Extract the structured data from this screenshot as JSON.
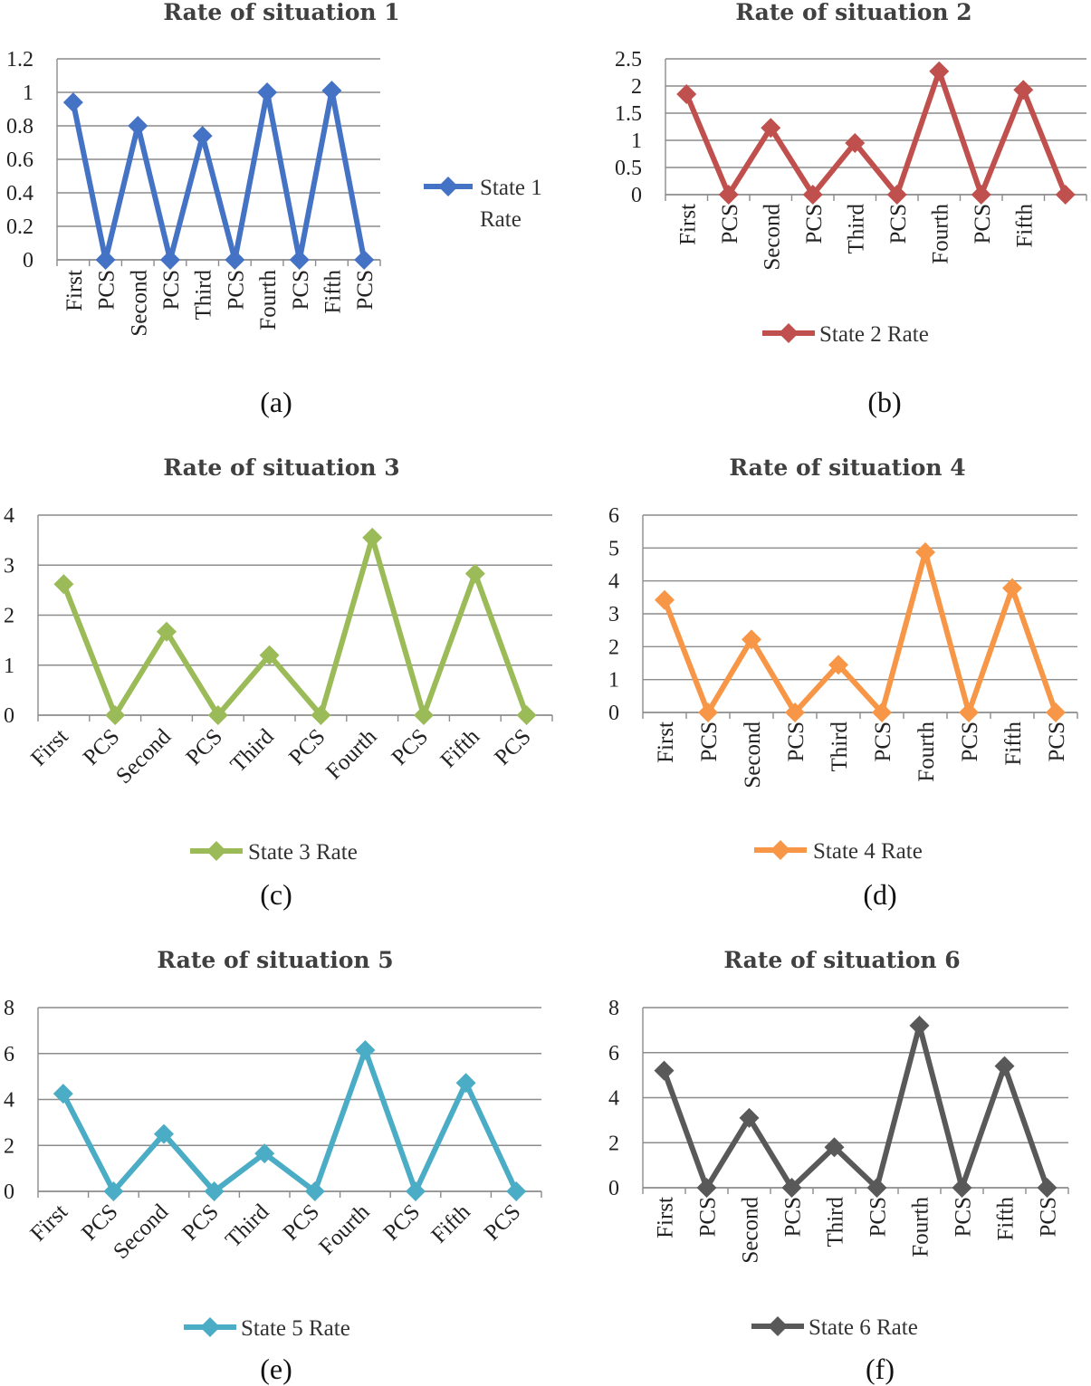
{
  "chart_data": [
    {
      "type": "line",
      "title": "Rate of situation 1",
      "caption": "(a)",
      "categories": [
        "First",
        "PCS",
        "Second",
        "PCS",
        "Third",
        "PCS",
        "Fourth",
        "PCS",
        "Fifth",
        "PCS"
      ],
      "series": [
        {
          "name": "State 1 Rate",
          "color": "#4472c4",
          "values": [
            0.94,
            0,
            0.8,
            0,
            0.74,
            0,
            1.0,
            0,
            1.01,
            0
          ]
        }
      ],
      "ylim": [
        0,
        1.2
      ],
      "yticks": [
        "0",
        "0.2",
        "0.4",
        "0.6",
        "0.8",
        "1",
        "1.2"
      ],
      "legend_position": "right",
      "legend_lines": [
        "State 1",
        "Rate"
      ]
    },
    {
      "type": "line",
      "title": "Rate of situation 2",
      "caption": "(b)",
      "categories": [
        "First",
        "PCS",
        "Second",
        "PCS",
        "Third",
        "PCS",
        "Fourth",
        "PCS",
        "Fifth",
        ""
      ],
      "series": [
        {
          "name": "State 2 Rate",
          "color": "#c0504d",
          "values": [
            1.85,
            0,
            1.23,
            0,
            0.95,
            0,
            2.27,
            0,
            1.93,
            0
          ]
        }
      ],
      "ylim": [
        0,
        2.5
      ],
      "yticks": [
        "0",
        "0.5",
        "1",
        "1.5",
        "2",
        "2.5"
      ],
      "legend_position": "bottom"
    },
    {
      "type": "line",
      "title": "Rate of situation 3",
      "caption": "(c)",
      "categories": [
        "First",
        "PCS",
        "Second",
        "PCS",
        "Third",
        "PCS",
        "Fourth",
        "PCS",
        "Fifth",
        "PCS"
      ],
      "series": [
        {
          "name": "State 3 Rate",
          "color": "#9bbb59",
          "values": [
            2.62,
            0,
            1.67,
            0,
            1.2,
            0,
            3.55,
            0,
            2.83,
            0
          ]
        }
      ],
      "ylim": [
        0,
        4
      ],
      "yticks": [
        "0",
        "1",
        "2",
        "3",
        "4"
      ],
      "legend_position": "bottom"
    },
    {
      "type": "line",
      "title": "Rate of situation 4",
      "caption": "(d)",
      "categories": [
        "First",
        "PCS",
        "Second",
        "PCS",
        "Third",
        "PCS",
        "Fourth",
        "PCS",
        "Fifth",
        "PCS"
      ],
      "series": [
        {
          "name": "State 4 Rate",
          "color": "#f79646",
          "values": [
            3.42,
            0,
            2.22,
            0,
            1.45,
            0,
            4.87,
            0,
            3.78,
            0
          ]
        }
      ],
      "ylim": [
        0,
        6
      ],
      "yticks": [
        "0",
        "1",
        "2",
        "3",
        "4",
        "5",
        "6"
      ],
      "legend_position": "bottom"
    },
    {
      "type": "line",
      "title": "Rate of situation 5",
      "caption": "(e)",
      "categories": [
        "First",
        "PCS",
        "Second",
        "PCS",
        "Third",
        "PCS",
        "Fourth",
        "PCS",
        "Fifth",
        "PCS"
      ],
      "series": [
        {
          "name": "State 5 Rate",
          "color": "#4bacc6",
          "values": [
            4.25,
            0,
            2.5,
            0,
            1.65,
            0,
            6.15,
            0,
            4.72,
            0
          ]
        }
      ],
      "ylim": [
        0,
        8
      ],
      "yticks": [
        "0",
        "2",
        "4",
        "6",
        "8"
      ],
      "legend_position": "bottom"
    },
    {
      "type": "line",
      "title": "Rate of situation 6",
      "caption": "(f)",
      "categories": [
        "First",
        "PCS",
        "Second",
        "PCS",
        "Third",
        "PCS",
        "Fourth",
        "PCS",
        "Fifth",
        "PCS"
      ],
      "series": [
        {
          "name": "State 6 Rate",
          "color": "#595959",
          "values": [
            5.2,
            0,
            3.1,
            0,
            1.8,
            0,
            7.2,
            0,
            5.4,
            0
          ]
        }
      ],
      "ylim": [
        0,
        8
      ],
      "yticks": [
        "0",
        "2",
        "4",
        "6",
        "8"
      ],
      "legend_position": "bottom"
    }
  ]
}
